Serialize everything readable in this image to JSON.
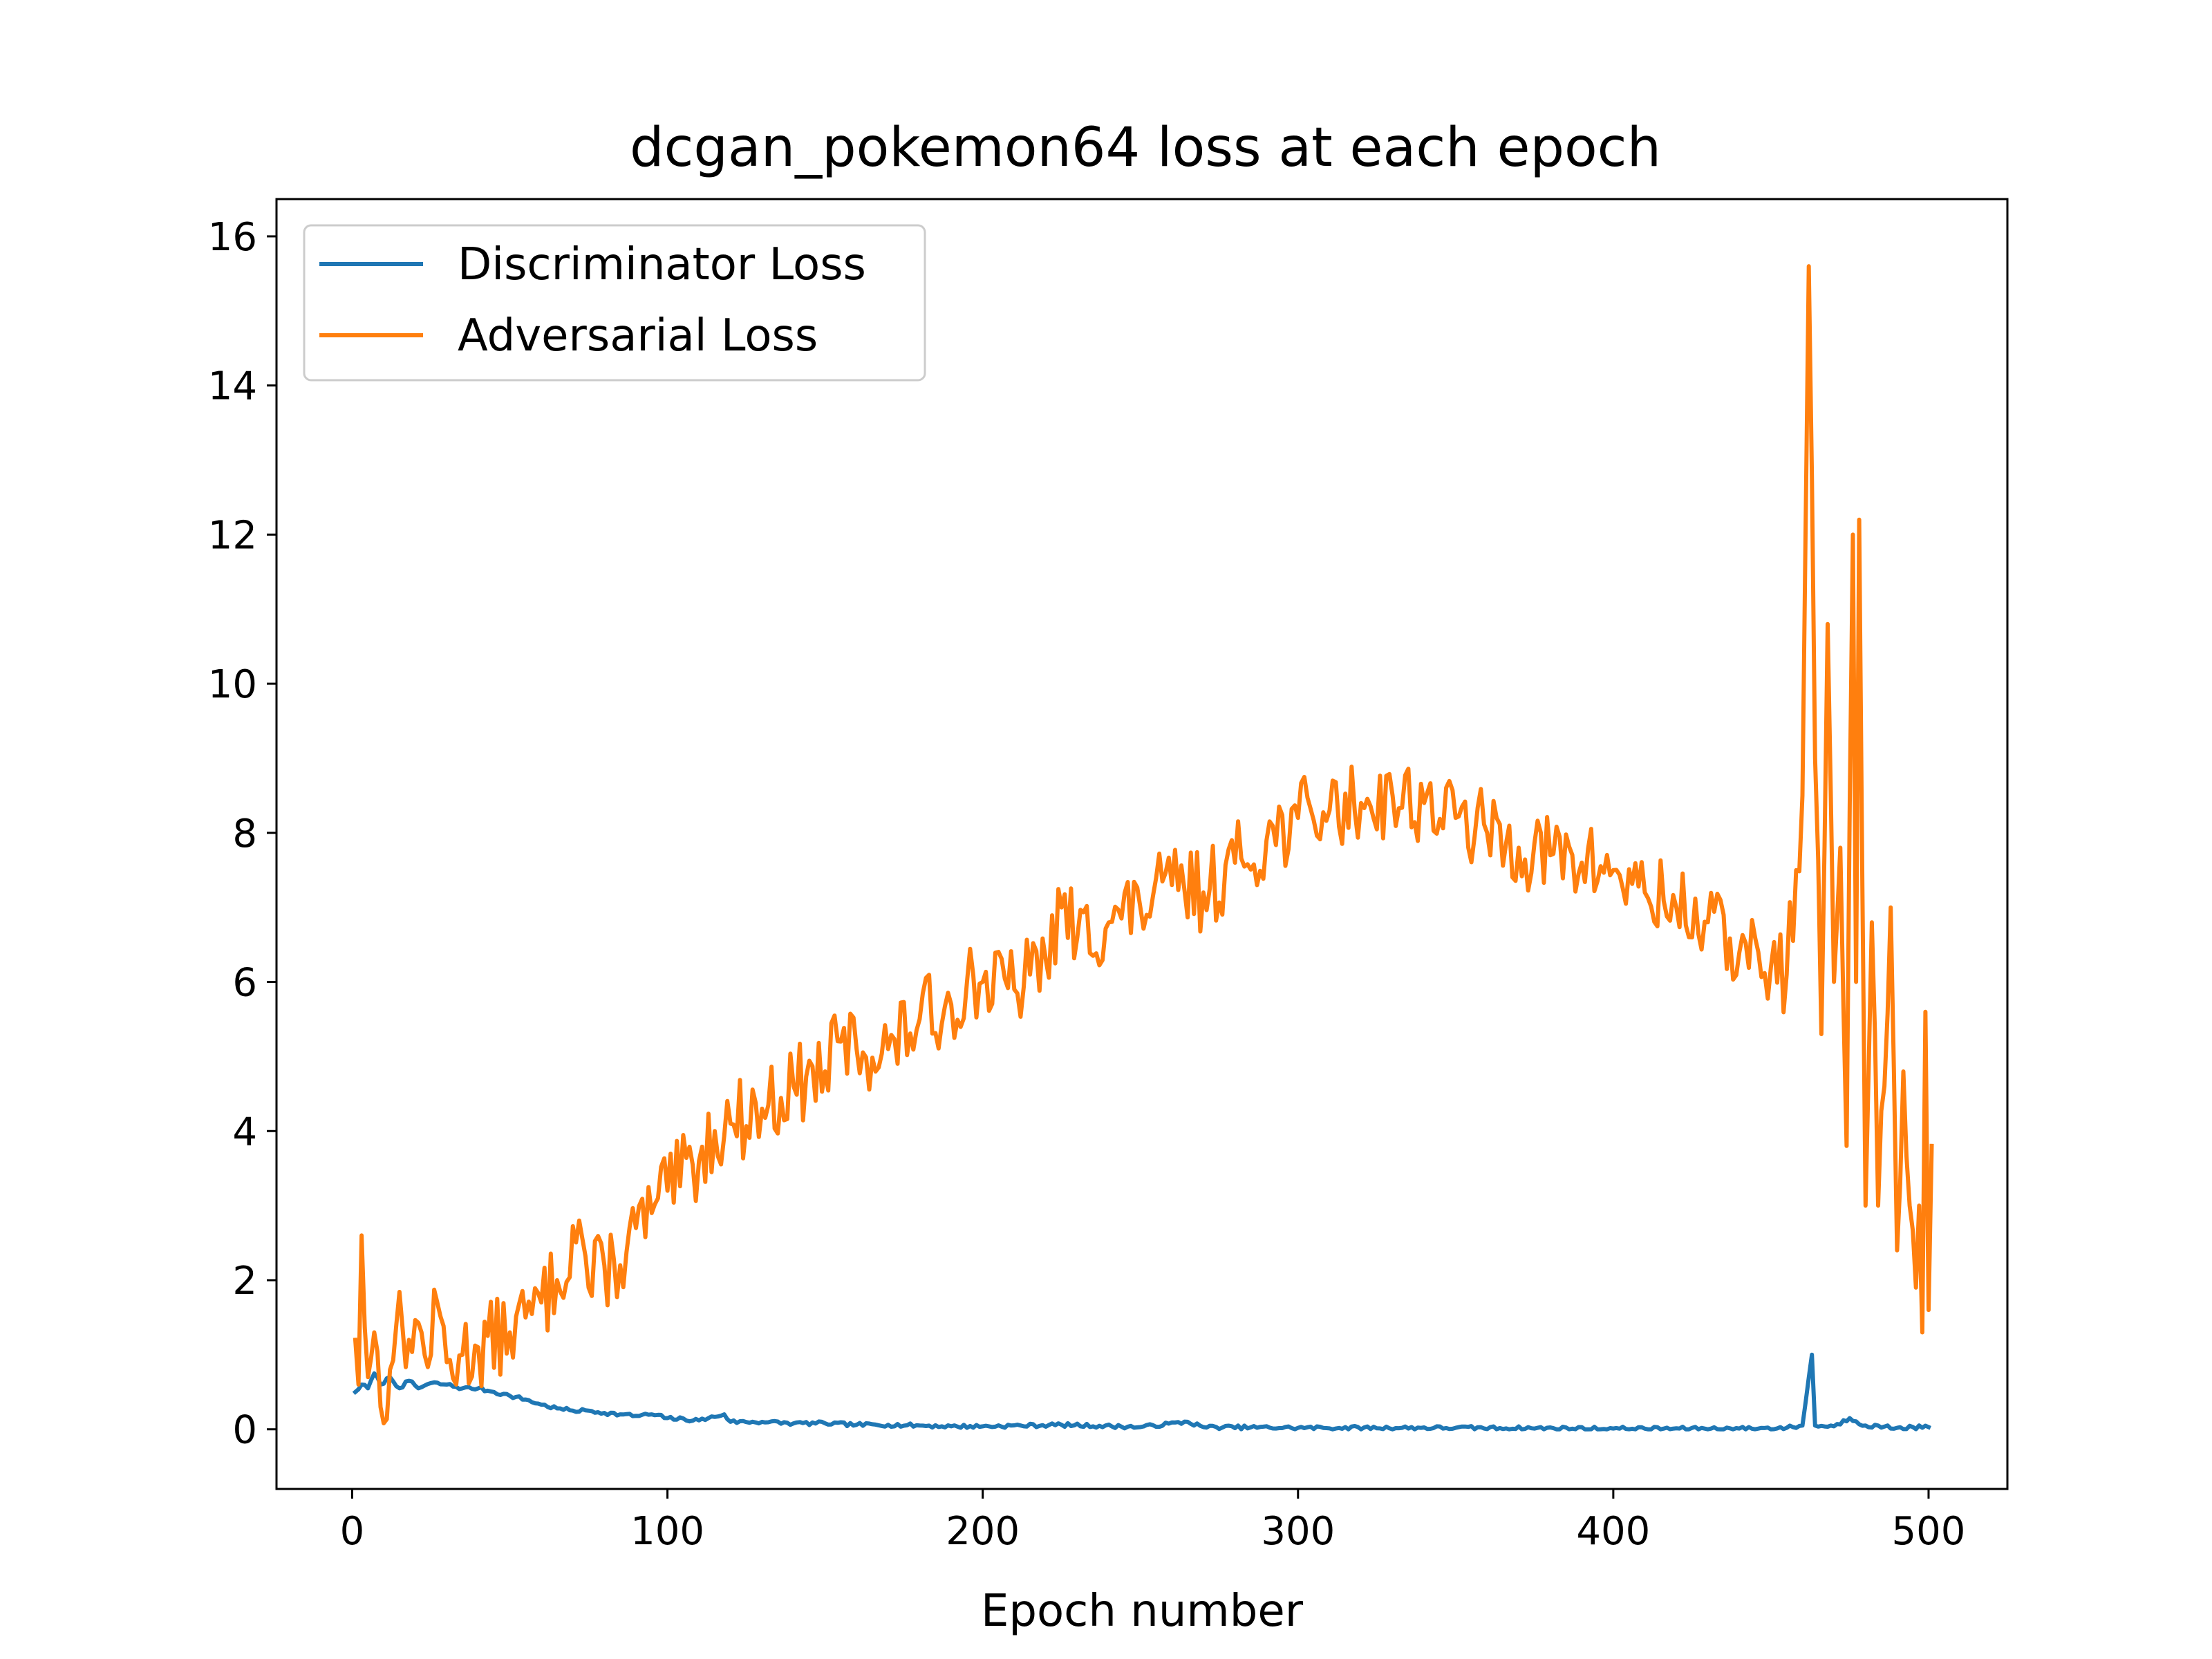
{
  "chart_data": {
    "type": "line",
    "title": "dcgan_pokemon64 loss at each epoch",
    "xlabel": "Epoch number",
    "ylabel": "",
    "xlim": [
      -24,
      525
    ],
    "ylim": [
      -0.8,
      16.5
    ],
    "xticks": [
      0,
      100,
      200,
      300,
      400,
      500
    ],
    "yticks": [
      0,
      2,
      4,
      6,
      8,
      10,
      12,
      14,
      16
    ],
    "grid": false,
    "legend_position": "top-left",
    "series": [
      {
        "name": "Discriminator Loss",
        "color": "#1f77b4",
        "keypoints": [
          [
            1,
            0.5
          ],
          [
            3,
            0.6
          ],
          [
            5,
            0.55
          ],
          [
            7,
            0.75
          ],
          [
            9,
            0.6
          ],
          [
            12,
            0.7
          ],
          [
            15,
            0.55
          ],
          [
            18,
            0.65
          ],
          [
            21,
            0.55
          ],
          [
            25,
            0.62
          ],
          [
            30,
            0.6
          ],
          [
            35,
            0.55
          ],
          [
            40,
            0.55
          ],
          [
            45,
            0.5
          ],
          [
            50,
            0.45
          ],
          [
            55,
            0.4
          ],
          [
            60,
            0.33
          ],
          [
            65,
            0.28
          ],
          [
            70,
            0.25
          ],
          [
            75,
            0.25
          ],
          [
            80,
            0.22
          ],
          [
            85,
            0.2
          ],
          [
            90,
            0.18
          ],
          [
            95,
            0.2
          ],
          [
            100,
            0.15
          ],
          [
            110,
            0.12
          ],
          [
            118,
            0.2
          ],
          [
            120,
            0.1
          ],
          [
            130,
            0.1
          ],
          [
            140,
            0.08
          ],
          [
            150,
            0.08
          ],
          [
            160,
            0.06
          ],
          [
            170,
            0.06
          ],
          [
            180,
            0.05
          ],
          [
            190,
            0.04
          ],
          [
            200,
            0.04
          ],
          [
            225,
            0.06
          ],
          [
            250,
            0.03
          ],
          [
            265,
            0.1
          ],
          [
            270,
            0.03
          ],
          [
            300,
            0.02
          ],
          [
            350,
            0.02
          ],
          [
            400,
            0.01
          ],
          [
            440,
            0.01
          ],
          [
            455,
            0.02
          ],
          [
            460,
            0.05
          ],
          [
            463,
            1.0
          ],
          [
            464,
            0.05
          ],
          [
            470,
            0.04
          ],
          [
            475,
            0.15
          ],
          [
            480,
            0.05
          ],
          [
            490,
            0.02
          ],
          [
            500,
            0.03
          ]
        ],
        "noise": 0.025,
        "seed": 7
      },
      {
        "name": "Adversarial Loss",
        "color": "#ff7f0e",
        "keypoints": [
          [
            1,
            1.2
          ],
          [
            2,
            0.6
          ],
          [
            3,
            2.6
          ],
          [
            5,
            0.7
          ],
          [
            7,
            1.3
          ],
          [
            9,
            0.3
          ],
          [
            12,
            0.8
          ],
          [
            14,
            1.4
          ],
          [
            18,
            1.2
          ],
          [
            22,
            1.3
          ],
          [
            25,
            1.0
          ],
          [
            27,
            1.7
          ],
          [
            30,
            0.9
          ],
          [
            35,
            1.0
          ],
          [
            40,
            1.1
          ],
          [
            50,
            1.3
          ],
          [
            55,
            1.5
          ],
          [
            60,
            1.7
          ],
          [
            65,
            2.0
          ],
          [
            72,
            2.8
          ],
          [
            75,
            1.9
          ],
          [
            80,
            2.2
          ],
          [
            85,
            2.2
          ],
          [
            90,
            2.7
          ],
          [
            95,
            2.9
          ],
          [
            100,
            3.2
          ],
          [
            110,
            3.6
          ],
          [
            115,
            4.0
          ],
          [
            120,
            4.1
          ],
          [
            130,
            4.3
          ],
          [
            140,
            4.6
          ],
          [
            150,
            4.8
          ],
          [
            155,
            5.2
          ],
          [
            160,
            5.1
          ],
          [
            170,
            5.1
          ],
          [
            180,
            5.5
          ],
          [
            190,
            5.7
          ],
          [
            195,
            6.0
          ],
          [
            200,
            6.0
          ],
          [
            210,
            5.9
          ],
          [
            215,
            6.1
          ],
          [
            220,
            6.3
          ],
          [
            225,
            7.0
          ],
          [
            230,
            6.6
          ],
          [
            240,
            6.8
          ],
          [
            250,
            7.0
          ],
          [
            260,
            7.3
          ],
          [
            270,
            7.2
          ],
          [
            280,
            7.6
          ],
          [
            290,
            7.9
          ],
          [
            300,
            8.2
          ],
          [
            310,
            8.3
          ],
          [
            320,
            8.4
          ],
          [
            330,
            8.5
          ],
          [
            340,
            8.4
          ],
          [
            350,
            8.2
          ],
          [
            360,
            8.0
          ],
          [
            370,
            7.8
          ],
          [
            380,
            7.7
          ],
          [
            390,
            7.6
          ],
          [
            400,
            7.5
          ],
          [
            410,
            7.2
          ],
          [
            420,
            7.0
          ],
          [
            430,
            6.8
          ],
          [
            440,
            6.4
          ],
          [
            450,
            6.2
          ],
          [
            455,
            6.1
          ],
          [
            458,
            7.5
          ],
          [
            460,
            8.5
          ],
          [
            462,
            15.6
          ],
          [
            464,
            9.0
          ],
          [
            466,
            5.3
          ],
          [
            468,
            10.8
          ],
          [
            470,
            6.0
          ],
          [
            472,
            7.8
          ],
          [
            474,
            3.8
          ],
          [
            476,
            12.0
          ],
          [
            477,
            6.0
          ],
          [
            478,
            12.2
          ],
          [
            480,
            3.0
          ],
          [
            482,
            6.8
          ],
          [
            484,
            3.0
          ],
          [
            486,
            4.6
          ],
          [
            488,
            7.0
          ],
          [
            490,
            2.4
          ],
          [
            492,
            4.8
          ],
          [
            494,
            3.0
          ],
          [
            496,
            1.9
          ],
          [
            497,
            3.0
          ],
          [
            498,
            1.3
          ],
          [
            499,
            5.6
          ],
          [
            500,
            1.6
          ],
          [
            501,
            3.8
          ]
        ],
        "noise": 0.55,
        "seed": 13
      }
    ]
  }
}
